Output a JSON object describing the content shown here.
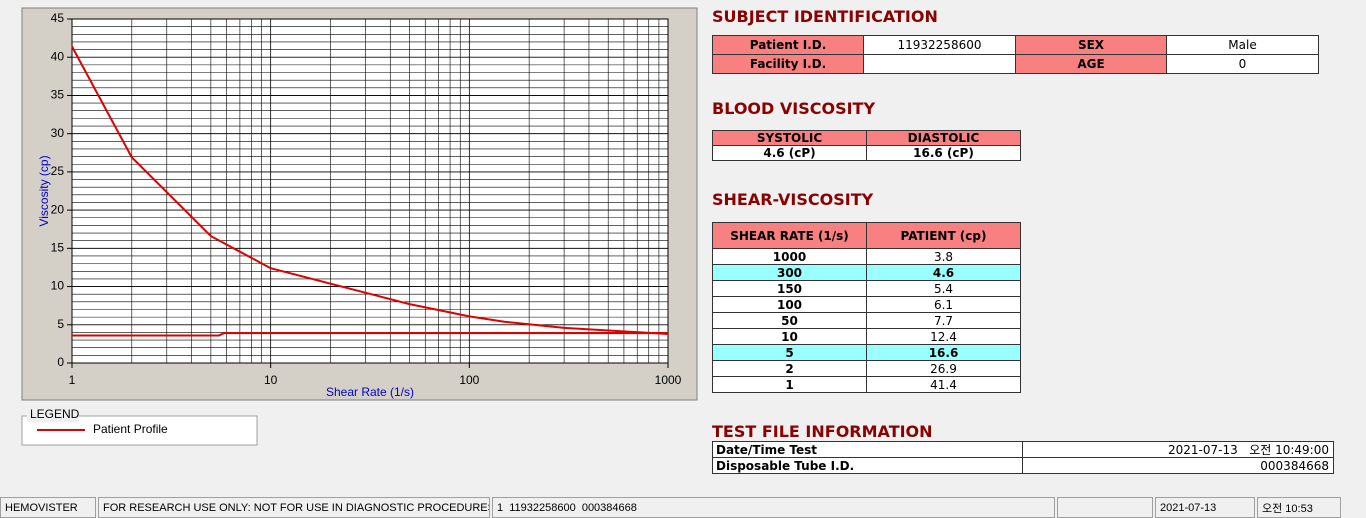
{
  "chart_data": {
    "type": "line",
    "xscale": "log",
    "grid": true,
    "xlabel": "Shear Rate (1/s)",
    "ylabel": "Viscosity (cp)",
    "xlim": [
      1,
      1000
    ],
    "xticks": [
      1,
      10,
      100,
      1000
    ],
    "ylim": [
      0,
      45
    ],
    "yticks": [
      0,
      5,
      10,
      15,
      20,
      25,
      30,
      35,
      40,
      45
    ],
    "series": [
      {
        "name": "Patient Profile",
        "color": "#e00000",
        "x": [
          1,
          2,
          5,
          10,
          50,
          100,
          150,
          300,
          1000
        ],
        "values": [
          41.4,
          26.9,
          16.6,
          12.4,
          7.7,
          6.1,
          5.4,
          4.6,
          3.8
        ]
      },
      {
        "color": "#e00000",
        "x": [
          1,
          5.5,
          5.8,
          1000
        ],
        "values": [
          3.6,
          3.6,
          3.9,
          3.9
        ]
      }
    ],
    "legend": {
      "title": "LEGEND"
    }
  },
  "subject_identification": {
    "title": "SUBJECT IDENTIFICATION",
    "fields": [
      {
        "label": "Patient I.D.",
        "value": "11932258600"
      },
      {
        "label": "SEX",
        "value": "Male"
      },
      {
        "label": "Facility I.D."
      },
      {
        "label": "AGE",
        "value": "0"
      }
    ]
  },
  "blood_viscosity": {
    "title": "BLOOD VISCOSITY",
    "headers": [
      "SYSTOLIC",
      "DIASTOLIC"
    ],
    "values": [
      "4.6 (cP)",
      "16.6 (cP)"
    ]
  },
  "shear_viscosity": {
    "title": "SHEAR-VISCOSITY",
    "headers": [
      "SHEAR RATE (1/s)",
      "PATIENT (cp)"
    ],
    "rows": [
      {
        "cells": [
          "1000",
          "3.8"
        ]
      },
      {
        "cells": [
          "300",
          "4.6"
        ],
        "highlight": true
      },
      {
        "cells": [
          "150",
          "5.4"
        ]
      },
      {
        "cells": [
          "100",
          "6.1"
        ]
      },
      {
        "cells": [
          "50",
          "7.7"
        ]
      },
      {
        "cells": [
          "10",
          "12.4"
        ]
      },
      {
        "cells": [
          "5",
          "16.6"
        ],
        "highlight": true
      },
      {
        "cells": [
          "2",
          "26.9"
        ]
      },
      {
        "cells": [
          "1",
          "41.4"
        ]
      }
    ]
  },
  "test_file": {
    "title": "TEST FILE INFORMATION",
    "rows": [
      [
        "Date/Time Test",
        "2021-07-13   오전 10:49:00"
      ],
      [
        "Disposable Tube I.D.",
        "000384668"
      ]
    ]
  },
  "status_bar": [
    "HEMOVISTER",
    "FOR RESEARCH USE ONLY: NOT FOR USE IN DIAGNOSTIC PROCEDURES",
    "1  11932258600  000384668",
    "2021-07-13",
    "오전 10:53"
  ]
}
